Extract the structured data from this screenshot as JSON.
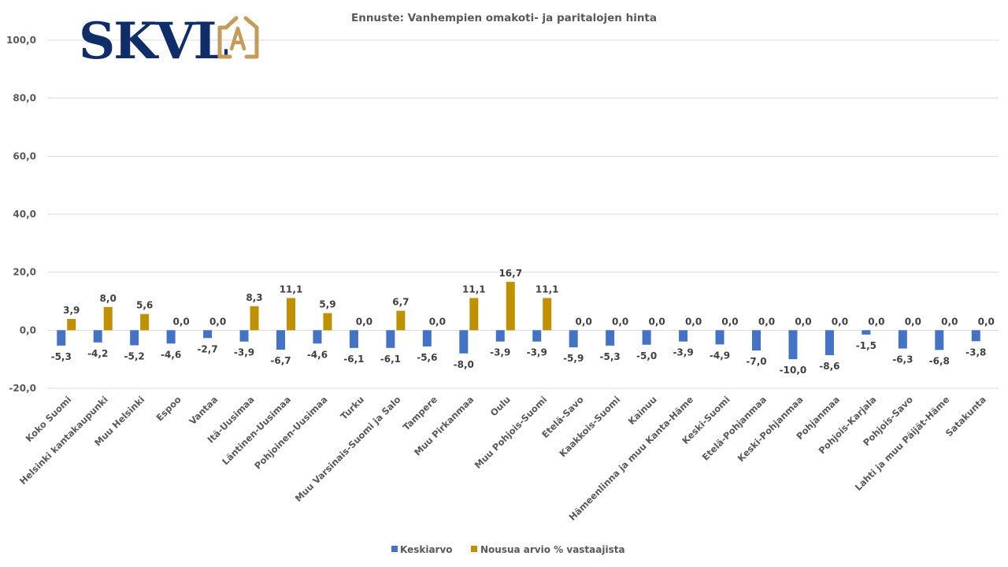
{
  "logo": {
    "text": "SKVL",
    "icon_letter": "A",
    "text_color": "#0f2d69",
    "icon_color": "#c39b5a"
  },
  "chart_data": {
    "type": "bar",
    "title": "Ennuste: Vanhempien omakoti- ja paritalojen hinta",
    "xlabel": "",
    "ylabel": "",
    "ylim": [
      -20,
      100
    ],
    "yticks": [
      100,
      80,
      60,
      40,
      20,
      0,
      -20
    ],
    "ytick_labels": [
      "100,0",
      "80,0",
      "60,0",
      "40,0",
      "20,0",
      "0,0",
      "-20,0"
    ],
    "grid": true,
    "legend_position": "bottom",
    "categories": [
      "Koko Suomi",
      "Helsinki kantakaupunki",
      "Muu Helsinki",
      "Espoo",
      "Vantaa",
      "Itä-Uusimaa",
      "Läntinen-Uusimaa",
      "Pohjoinen-Uusimaa",
      "Turku",
      "Muu Varsinais-Suomi ja Salo",
      "Tampere",
      "Muu Pirkanmaa",
      "Oulu",
      "Muu Pohjois-Suomi",
      "Etelä-Savo",
      "Kaakkois-Suomi",
      "Kainuu",
      "Hämeenlinna ja muu Kanta-Häme",
      "Keski-Suomi",
      "Etelä-Pohjanmaa",
      "Keski-Pohjanmaa",
      "Pohjanmaa",
      "Pohjois-Karjala",
      "Pohjois-Savo",
      "Lahti ja muu Päijät-Häme",
      "Satakunta"
    ],
    "series": [
      {
        "name": "Keskiarvo",
        "color": "#4472c4",
        "values": [
          -5.3,
          -4.2,
          -5.2,
          -4.6,
          -2.7,
          -3.9,
          -6.7,
          -4.6,
          -6.1,
          -6.1,
          -5.6,
          -8.0,
          -3.9,
          -3.9,
          -5.9,
          -5.3,
          -5.0,
          -3.9,
          -4.9,
          -7.0,
          -10.0,
          -8.6,
          -1.5,
          -6.3,
          -6.8,
          -3.8
        ],
        "labels": [
          "-5,3",
          "-4,2",
          "-5,2",
          "-4,6",
          "-2,7",
          "-3,9",
          "-6,7",
          "-4,6",
          "-6,1",
          "-6,1",
          "-5,6",
          "-8,0",
          "-3,9",
          "-3,9",
          "-5,9",
          "-5,3",
          "-5,0",
          "-3,9",
          "-4,9",
          "-7,0",
          "-10,0",
          "-8,6",
          "-1,5",
          "-6,3",
          "-6,8",
          "-3,8"
        ]
      },
      {
        "name": "Nousua arvio % vastaajista",
        "color": "#bf9000",
        "values": [
          3.9,
          8.0,
          5.6,
          0.0,
          0.0,
          8.3,
          11.1,
          5.9,
          0.0,
          6.7,
          0.0,
          11.1,
          16.7,
          11.1,
          0.0,
          0.0,
          0.0,
          0.0,
          0.0,
          0.0,
          0.0,
          0.0,
          0.0,
          0.0,
          0.0,
          0.0
        ],
        "labels": [
          "3,9",
          "8,0",
          "5,6",
          "0,0",
          "0,0",
          "8,3",
          "11,1",
          "5,9",
          "0,0",
          "6,7",
          "0,0",
          "11,1",
          "16,7",
          "11,1",
          "0,0",
          "0,0",
          "0,0",
          "0,0",
          "0,0",
          "0,0",
          "0,0",
          "0,0",
          "0,0",
          "0,0",
          "0,0",
          "0,0"
        ]
      }
    ]
  }
}
